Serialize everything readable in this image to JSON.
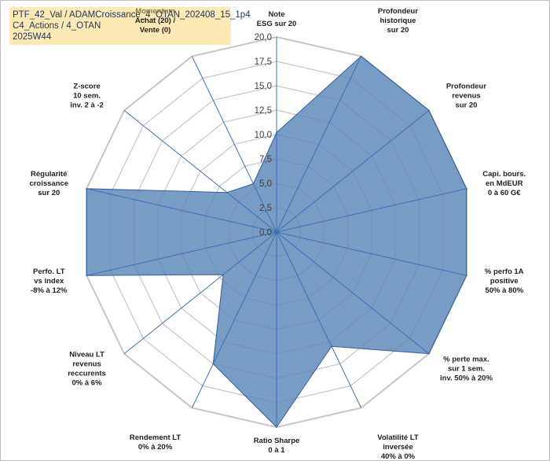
{
  "title_box": {
    "line1": "PTF_42_Val / ADAMCroissance_4_OTAN_202408_15_1p4",
    "line2": "C4_Actions / 4_OTAN",
    "line3": "2025W44"
  },
  "chart_data": {
    "type": "radar",
    "rlim": [
      0,
      20
    ],
    "ticks": [
      "0,0",
      "2,5",
      "5,0",
      "7,5",
      "10,0",
      "12,5",
      "15,0",
      "17,5",
      "20,0"
    ],
    "tick_values": [
      0,
      2.5,
      5,
      7.5,
      10,
      12.5,
      15,
      17.5,
      20
    ],
    "grid": true,
    "fill_color": "#5b86b8",
    "line_color": "#2f5f9e",
    "grid_color": "#c6c6c6",
    "spoke_color": "#3d6fb6",
    "categories": [
      [
        "Note",
        "ESG sur 20"
      ],
      [
        "Profondeur",
        "historique",
        "sur 20"
      ],
      [
        "Profondeur",
        "revenus",
        "sur 20"
      ],
      [
        "Capi. bours.",
        "en MdEUR",
        "0 à 60 G€"
      ],
      [
        "% perfo 1A",
        "positive",
        "50% à 80%"
      ],
      [
        "% perte max.",
        "sur 1 sem.",
        "inv. 50% à 20%"
      ],
      [
        "Volatilité LT",
        "inversée",
        "40% à 0%"
      ],
      [
        "Ratio Sharpe",
        "0 à 1"
      ],
      [
        "Rendement LT",
        "0% à 20%"
      ],
      [
        "Niveau LT",
        "revenus",
        "reccurents",
        "0% à 6%"
      ],
      [
        "Perfo. LT",
        "vs index",
        "-8% à 12%"
      ],
      [
        "Régularité",
        "croissance",
        "sur 20"
      ],
      [
        "Z-score",
        "10 sem.",
        "inv. 2 à -2"
      ],
      [
        "Momentum",
        "Achat (20) /",
        "Vente (0)"
      ]
    ],
    "values": [
      10.2,
      20,
      20,
      20,
      20,
      20,
      13,
      20,
      15,
      7,
      20,
      20,
      6.5,
      5.5
    ]
  }
}
